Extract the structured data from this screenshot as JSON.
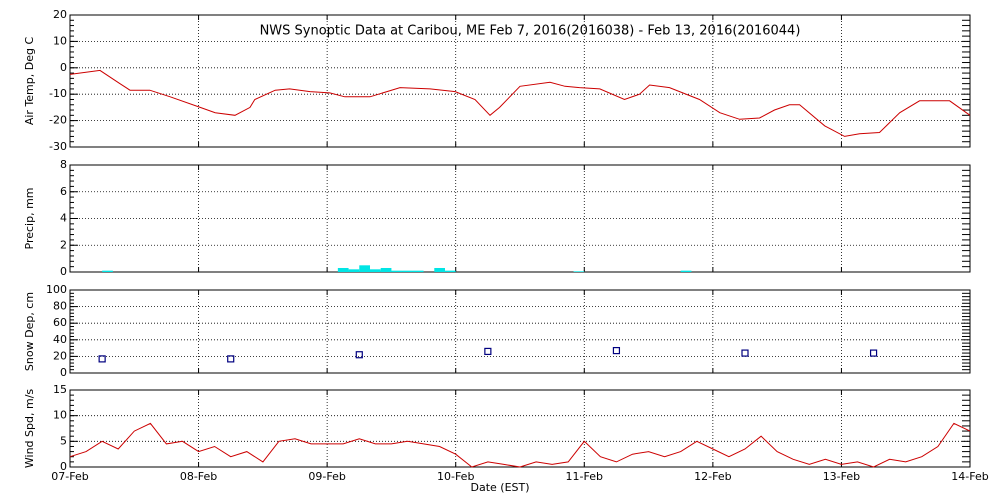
{
  "x_axis": {
    "label": "Date (EST)",
    "xlim": [
      0,
      168
    ],
    "xticks": [
      {
        "value": 0,
        "label": "07-Feb"
      },
      {
        "value": 24,
        "label": "08-Feb"
      },
      {
        "value": 48,
        "label": "09-Feb"
      },
      {
        "value": 72,
        "label": "10-Feb"
      },
      {
        "value": 96,
        "label": "11-Feb"
      },
      {
        "value": 120,
        "label": "12-Feb"
      },
      {
        "value": 144,
        "label": "13-Feb"
      },
      {
        "value": 168,
        "label": "14-Feb"
      }
    ]
  },
  "chart_data": [
    {
      "type": "line",
      "title": "NWS Synoptic Data at Caribou, ME   Feb  7, 2016(2016038) - Feb 13, 2016(2016044)",
      "y_label": "Air Temp, Deg C",
      "color": "#cc0000",
      "ylim": [
        -30,
        20
      ],
      "yticks": [
        -30,
        -20,
        -10,
        0,
        10,
        20
      ],
      "grid": true,
      "x": [
        0,
        5.6,
        9.3,
        11.2,
        14.9,
        18.7,
        24.3,
        27.1,
        30.8,
        33.6,
        34.5,
        38.3,
        41.0,
        44.8,
        48.5,
        51.3,
        56.0,
        61.6,
        67.2,
        71.9,
        75.6,
        78.4,
        80.2,
        84.0,
        89.6,
        92.4,
        95.1,
        98.9,
        103.5,
        106.3,
        108.2,
        111.9,
        117.5,
        121.3,
        125.0,
        128.7,
        131.5,
        134.3,
        136.2,
        140.9,
        144.6,
        147.4,
        151.1,
        154.9,
        158.6,
        164.2,
        168.0
      ],
      "values": [
        -2.5,
        -1,
        -6,
        -8.5,
        -8.5,
        -11,
        -15,
        -17,
        -18,
        -15,
        -12,
        -8.5,
        -8,
        -9,
        -9.5,
        -11,
        -11,
        -7.5,
        -8,
        -9,
        -12,
        -18,
        -15,
        -7,
        -5.5,
        -7,
        -7.5,
        -8,
        -12,
        -10,
        -6.5,
        -7.5,
        -12,
        -17,
        -19.5,
        -19,
        -16,
        -14,
        -14,
        -22,
        -26,
        -25,
        -24.5,
        -17,
        -12.5,
        -12.5,
        -18
      ]
    },
    {
      "type": "bar",
      "y_label": "Precip, mm",
      "color": "#00e5e5",
      "bar_hours": 2,
      "ylim": [
        0,
        8
      ],
      "yticks": [
        0,
        2,
        4,
        6,
        8
      ],
      "grid": true,
      "x": [
        6,
        50,
        52,
        54,
        56,
        58,
        60,
        62,
        64,
        68,
        70,
        94,
        114
      ],
      "values": [
        0.1,
        0.3,
        0.2,
        0.5,
        0.2,
        0.3,
        0.1,
        0.1,
        0.1,
        0.3,
        0.1,
        0.05,
        0.1
      ]
    },
    {
      "type": "scatter",
      "y_label": "Snow Dep, cm",
      "color": "#000080",
      "ylim": [
        0,
        100
      ],
      "yticks": [
        0,
        20,
        40,
        60,
        80,
        100
      ],
      "grid": true,
      "x": [
        6,
        30,
        54,
        78,
        102,
        126,
        150
      ],
      "values": [
        17,
        17,
        22,
        26,
        27,
        24,
        24
      ]
    },
    {
      "type": "line",
      "y_label": "Wind Spd, m/s",
      "color": "#cc0000",
      "ylim": [
        0,
        15
      ],
      "yticks": [
        0,
        5,
        10,
        15
      ],
      "grid": true,
      "x": [
        0,
        3,
        6,
        9,
        12,
        15,
        18,
        21,
        24,
        27,
        30,
        33,
        36,
        39,
        42,
        45,
        48,
        51,
        54,
        57,
        60,
        63,
        66,
        69,
        72,
        75,
        78,
        81,
        84,
        87,
        90,
        93,
        96,
        99,
        102,
        105,
        108,
        111,
        114,
        117,
        120,
        123,
        126,
        129,
        132,
        135,
        138,
        141,
        144,
        147,
        150,
        153,
        156,
        159,
        162,
        165,
        168
      ],
      "values": [
        2,
        3,
        5,
        3.5,
        7,
        8.5,
        4.5,
        5,
        3,
        4,
        2,
        3,
        1,
        5,
        5.5,
        4.5,
        4.5,
        4.5,
        5.5,
        4.5,
        4.5,
        5,
        4.5,
        4,
        2.5,
        0,
        1,
        0.5,
        0,
        1,
        0.5,
        1,
        5,
        2,
        1,
        2.5,
        3,
        2,
        3,
        5,
        3.5,
        2,
        3.5,
        6,
        3,
        1.5,
        0.5,
        1.5,
        0.5,
        1,
        0,
        1.5,
        1,
        2,
        4,
        8.5,
        7
      ]
    }
  ]
}
